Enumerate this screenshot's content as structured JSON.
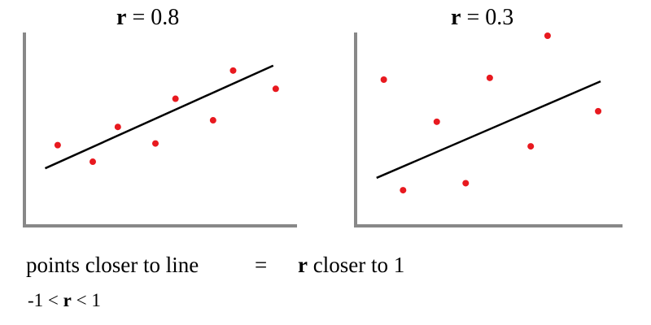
{
  "colors": {
    "point": "#e8191f",
    "line": "#000000",
    "axis": "#888888"
  },
  "chart_data": [
    {
      "type": "scatter",
      "title_symbol": "r",
      "title_rest": " = 0.8",
      "xlim": [
        0,
        100
      ],
      "ylim": [
        0,
        100
      ],
      "points": [
        {
          "x": 11,
          "y": 34
        },
        {
          "x": 25,
          "y": 24
        },
        {
          "x": 35,
          "y": 45
        },
        {
          "x": 50,
          "y": 35
        },
        {
          "x": 58,
          "y": 62
        },
        {
          "x": 73,
          "y": 49
        },
        {
          "x": 81,
          "y": 79
        },
        {
          "x": 98,
          "y": 68
        }
      ],
      "trend_line": {
        "x1": 6,
        "y1": 20,
        "x2": 97,
        "y2": 82
      },
      "grid": false
    },
    {
      "type": "scatter",
      "title_symbol": "r",
      "title_rest": " = 0.3",
      "xlim": [
        0,
        100
      ],
      "ylim": [
        0,
        100
      ],
      "points": [
        {
          "x": 9,
          "y": 75
        },
        {
          "x": 17,
          "y": 12
        },
        {
          "x": 31,
          "y": 51
        },
        {
          "x": 43,
          "y": 16
        },
        {
          "x": 53,
          "y": 76
        },
        {
          "x": 70,
          "y": 37
        },
        {
          "x": 77,
          "y": 100
        },
        {
          "x": 98,
          "y": 57
        }
      ],
      "trend_line": {
        "x1": 6,
        "y1": 19,
        "x2": 99,
        "y2": 74
      },
      "grid": false
    }
  ],
  "caption": {
    "left": "points closer to line",
    "equals": "=",
    "right_symbol": "r",
    "right_rest": " closer to 1",
    "range_left": "-1 < ",
    "range_symbol": "r",
    "range_right": " < 1"
  }
}
